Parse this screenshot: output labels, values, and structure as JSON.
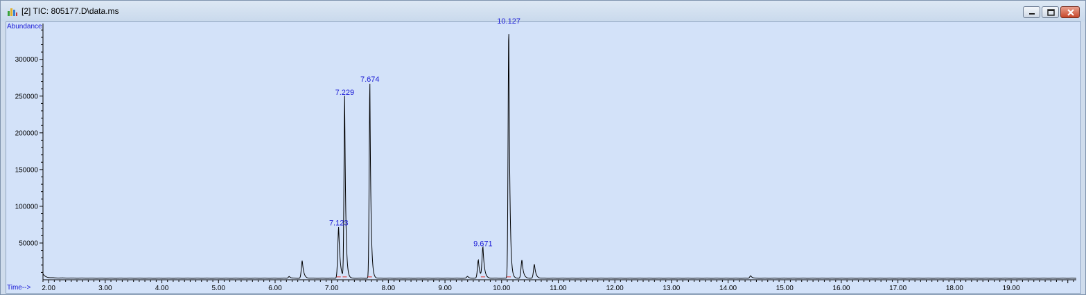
{
  "window": {
    "title": "[2] TIC: 805177.D\\data.ms",
    "icon": "chromatogram-icon",
    "buttons": {
      "minimize": "minimize-icon",
      "maximize": "maximize-icon",
      "close": "close-icon"
    }
  },
  "chart_data": {
    "type": "line",
    "ylabel": "Abundance",
    "xlabel": "Time-->",
    "xlim": [
      1.9,
      20.15
    ],
    "ylim": [
      0,
      345000
    ],
    "x_ticks": [
      "2.00",
      "3.00",
      "4.00",
      "5.00",
      "6.00",
      "7.00",
      "8.00",
      "9.00",
      "10.00",
      "11.00",
      "12.00",
      "13.00",
      "14.00",
      "15.00",
      "16.00",
      "17.00",
      "18.00",
      "19.00"
    ],
    "y_ticks": [
      "50000",
      "100000",
      "150000",
      "200000",
      "250000",
      "300000"
    ],
    "baseline": 3000,
    "peaks": [
      {
        "rt": 6.25,
        "height": 2500
      },
      {
        "rt": 6.48,
        "height": 24000
      },
      {
        "rt": 7.123,
        "height": 70000,
        "label": "7.123"
      },
      {
        "rt": 7.229,
        "height": 248000,
        "label": "7.229"
      },
      {
        "rt": 7.674,
        "height": 266000,
        "label": "7.674"
      },
      {
        "rt": 9.4,
        "height": 2500
      },
      {
        "rt": 9.59,
        "height": 25000
      },
      {
        "rt": 9.671,
        "height": 42000,
        "label": "9.671"
      },
      {
        "rt": 10.127,
        "height": 345000,
        "label": "10.127"
      },
      {
        "rt": 10.36,
        "height": 25000
      },
      {
        "rt": 10.58,
        "height": 19000
      },
      {
        "rt": 14.4,
        "height": 3500
      }
    ],
    "colors": {
      "trace": "#000000",
      "labels": "#1a1ad6",
      "background": "#d3e2f9",
      "integration_marks": "#e04848"
    },
    "grid": false
  }
}
